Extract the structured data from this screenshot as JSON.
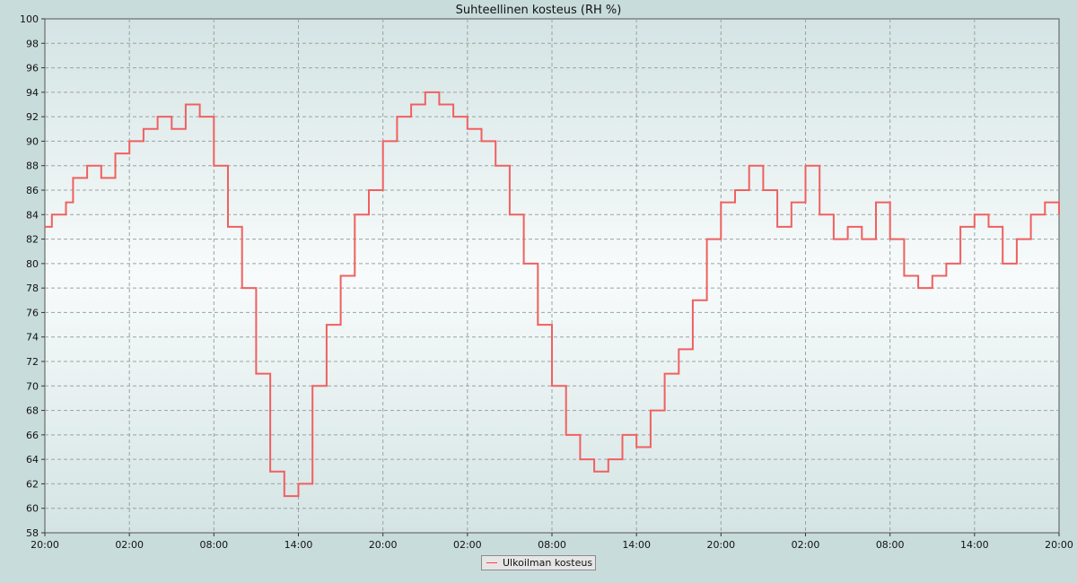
{
  "chart_data": {
    "type": "line",
    "title": "Suhteellinen kosteus (RH %)",
    "xlabel": "",
    "ylabel": "",
    "ylim": [
      58,
      100
    ],
    "yticks": [
      58,
      60,
      62,
      64,
      66,
      68,
      70,
      72,
      74,
      76,
      78,
      80,
      82,
      84,
      86,
      88,
      90,
      92,
      94,
      96,
      98,
      100
    ],
    "xlim": [
      0,
      72
    ],
    "xtick_labels": [
      "20:00",
      "02:00",
      "08:00",
      "14:00",
      "20:00",
      "02:00",
      "08:00",
      "14:00",
      "20:00",
      "02:00",
      "08:00",
      "14:00",
      "20:00"
    ],
    "grid": true,
    "legend_position": "bottom-center",
    "series": [
      {
        "name": "Ulkoilman kosteus",
        "color": "#f06060",
        "x": [
          0,
          0.5,
          1,
          1.5,
          2,
          3,
          4,
          5,
          6,
          7,
          8,
          9,
          10,
          11,
          12,
          13,
          14,
          15,
          16,
          17,
          18,
          19,
          20,
          21,
          22,
          23,
          24,
          25,
          26,
          27,
          28,
          29,
          30,
          31,
          32,
          33,
          34,
          35,
          36,
          37,
          38,
          39,
          40,
          41,
          42,
          43,
          44,
          45,
          46,
          47,
          48,
          49,
          50,
          51,
          52,
          53,
          54,
          55,
          56,
          57,
          58,
          59,
          60,
          61,
          62,
          63,
          64,
          65,
          66,
          67,
          68,
          69,
          70,
          71,
          72
        ],
        "values": [
          83,
          84,
          84,
          85,
          87,
          88,
          87,
          89,
          90,
          91,
          92,
          91,
          93,
          92,
          88,
          83,
          78,
          71,
          63,
          61,
          62,
          70,
          75,
          79,
          84,
          86,
          90,
          92,
          93,
          94,
          93,
          92,
          91,
          90,
          88,
          84,
          80,
          75,
          70,
          66,
          64,
          63,
          64,
          66,
          65,
          68,
          71,
          73,
          77,
          82,
          85,
          86,
          88,
          86,
          83,
          85,
          88,
          84,
          82,
          83,
          82,
          85,
          82,
          79,
          78,
          79,
          80,
          83,
          84,
          83,
          80,
          82,
          84,
          85,
          84
        ]
      }
    ]
  }
}
